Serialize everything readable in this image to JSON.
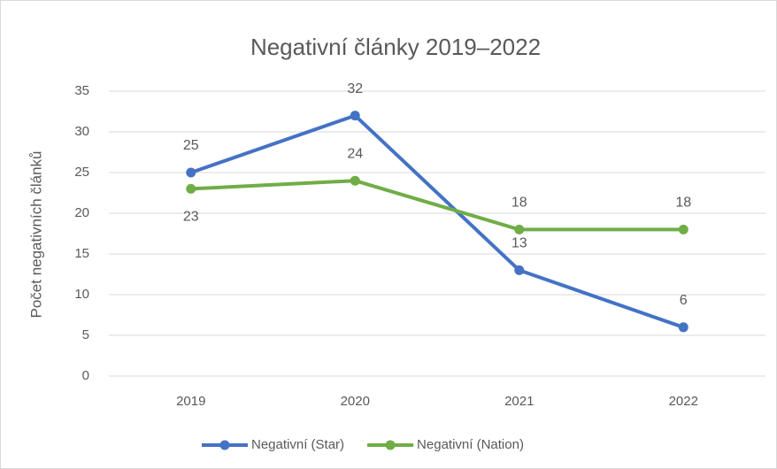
{
  "chart_data": {
    "type": "line",
    "title": "Negativní články 2019–2022",
    "y_label": "Počet negativních článků",
    "categories": [
      "2019",
      "2020",
      "2021",
      "2022"
    ],
    "series": [
      {
        "name": "Negativní (Star)",
        "color": "#4472c4",
        "values": [
          25,
          32,
          13,
          6
        ]
      },
      {
        "name": "Negativní (Nation)",
        "color": "#70ad47",
        "values": [
          23,
          24,
          18,
          18
        ]
      }
    ],
    "ylim": [
      0,
      35
    ],
    "yticks": [
      0,
      5,
      10,
      15,
      20,
      25,
      30,
      35
    ],
    "grid": true,
    "legend": "bottom"
  }
}
